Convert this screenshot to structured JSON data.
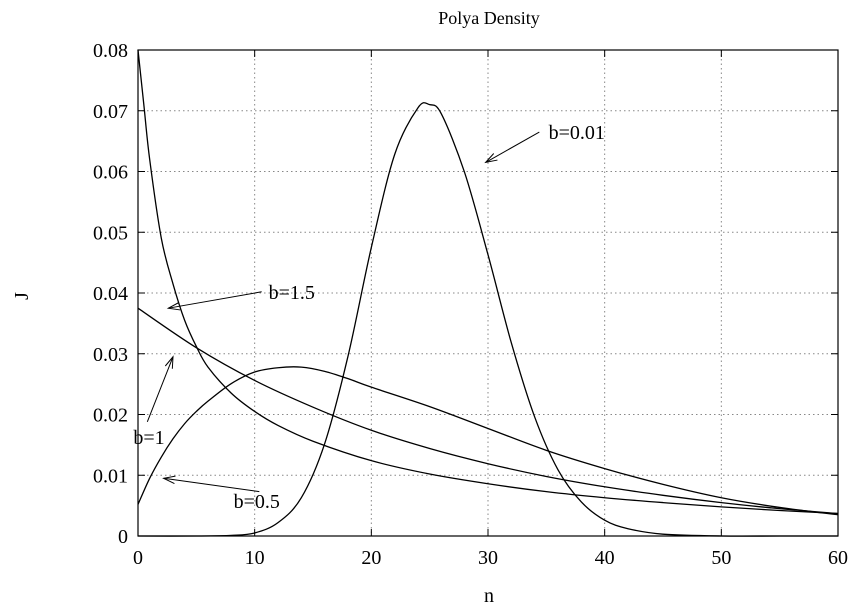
{
  "chart_data": {
    "type": "line",
    "title": "Polya Density",
    "xlabel": "n",
    "ylabel": "J",
    "xlim": [
      0,
      60
    ],
    "ylim": [
      0,
      0.08
    ],
    "grid": true,
    "x_ticks": [
      "0",
      "10",
      "20",
      "30",
      "40",
      "50",
      "60"
    ],
    "y_ticks": [
      "0",
      "0.01",
      "0.02",
      "0.03",
      "0.04",
      "0.05",
      "0.06",
      "0.07",
      "0.08"
    ],
    "line_color": "#000000",
    "grid_color": "#888888",
    "series": [
      {
        "name": "b=0.01",
        "x": [
          0,
          5,
          8,
          10,
          12,
          14,
          16,
          18,
          20,
          22,
          24,
          25,
          26,
          28,
          30,
          32,
          34,
          36,
          38,
          40,
          42,
          45,
          50,
          55,
          60
        ],
        "y": [
          0,
          0,
          0.0001,
          0.0005,
          0.0022,
          0.0063,
          0.0152,
          0.0296,
          0.0475,
          0.0628,
          0.0705,
          0.071,
          0.0695,
          0.0598,
          0.0463,
          0.0318,
          0.0196,
          0.0109,
          0.0056,
          0.0026,
          0.0012,
          0.0003,
          0,
          0,
          0
        ]
      },
      {
        "name": "b=1.5",
        "x": [
          0,
          0.5,
          1,
          2,
          3,
          4,
          5,
          6,
          8,
          10,
          12,
          15,
          20,
          25,
          30,
          35,
          40,
          45,
          50,
          55,
          60
        ],
        "y": [
          0.082,
          0.071,
          0.062,
          0.049,
          0.0415,
          0.0355,
          0.0312,
          0.0278,
          0.0235,
          0.0205,
          0.0182,
          0.0156,
          0.0124,
          0.0102,
          0.0086,
          0.0073,
          0.0063,
          0.0055,
          0.0048,
          0.0042,
          0.0037
        ]
      },
      {
        "name": "b=1",
        "x": [
          0,
          5,
          10,
          15,
          20,
          25,
          30,
          35,
          40,
          45,
          50,
          55,
          60
        ],
        "y": [
          0.0375,
          0.031,
          0.0256,
          0.0212,
          0.0174,
          0.0144,
          0.0119,
          0.0098,
          0.0081,
          0.0067,
          0.0055,
          0.0045,
          0.0037
        ]
      },
      {
        "name": "b=0.5",
        "x": [
          0,
          1,
          2,
          3,
          4,
          5,
          6,
          8,
          10,
          12,
          14,
          16,
          18,
          20,
          25,
          30,
          35,
          40,
          45,
          50,
          55,
          60
        ],
        "y": [
          0.0052,
          0.0095,
          0.013,
          0.016,
          0.0185,
          0.0205,
          0.0222,
          0.0251,
          0.027,
          0.0277,
          0.0278,
          0.0271,
          0.0259,
          0.0245,
          0.0213,
          0.0177,
          0.0141,
          0.0111,
          0.0085,
          0.0063,
          0.0047,
          0.0035
        ]
      }
    ],
    "annotations": [
      {
        "text": "b=0.01",
        "text_at": [
          35.2,
          0.0665
        ],
        "arrow_from": [
          34.4,
          0.0665
        ],
        "arrow_to": [
          29.8,
          0.0615
        ]
      },
      {
        "text": "b=1.5",
        "text_at": [
          11.2,
          0.0402
        ],
        "arrow_from": [
          10.6,
          0.0402
        ],
        "arrow_to": [
          2.6,
          0.0375
        ]
      },
      {
        "text": "b=1",
        "text_at": [
          -0.4,
          0.0163
        ],
        "arrow_from": [
          0.8,
          0.0188
        ],
        "arrow_to": [
          3.0,
          0.0295
        ]
      },
      {
        "text": "b=0.5",
        "text_at": [
          8.2,
          0.0058
        ],
        "arrow_from": [
          10.4,
          0.0073
        ],
        "arrow_to": [
          2.2,
          0.0095
        ]
      }
    ]
  }
}
